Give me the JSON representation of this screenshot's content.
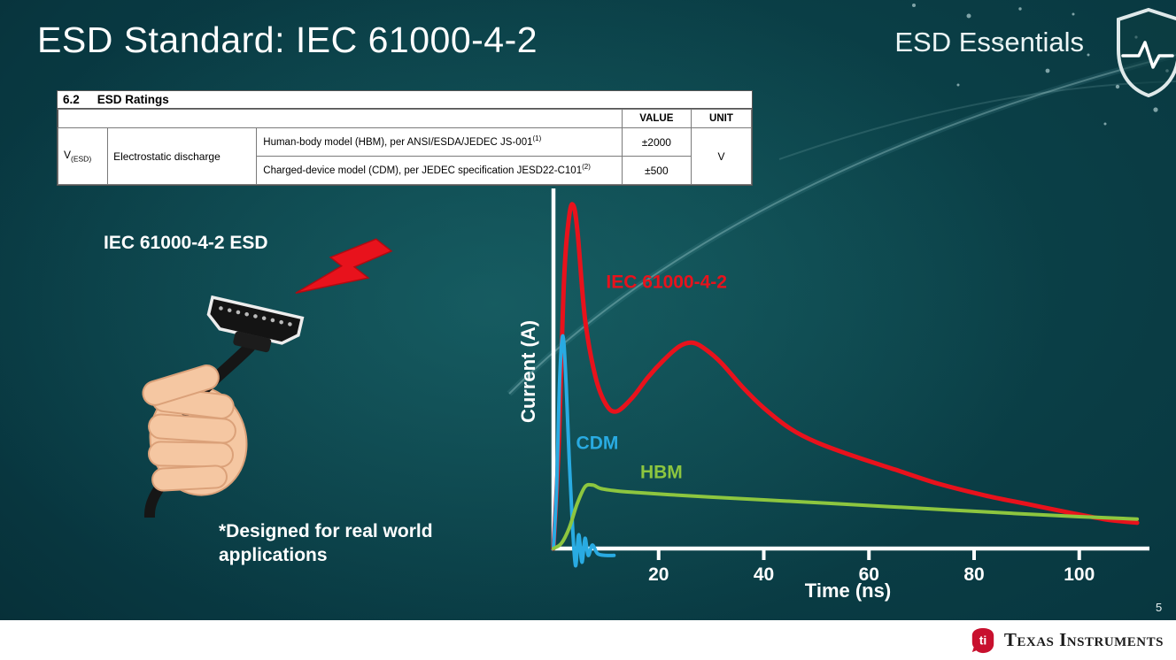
{
  "slide": {
    "title": "ESD Standard: IEC 61000-4-2",
    "series_label": "ESD Essentials",
    "page_number": "5"
  },
  "ratings_table": {
    "section_number": "6.2",
    "section_title": "ESD Ratings",
    "value_header": "VALUE",
    "unit_header": "UNIT",
    "symbol_base": "V",
    "symbol_sub": "(ESD)",
    "parameter": "Electrostatic discharge",
    "rows": [
      {
        "description": "Human-body model (HBM), per ANSI/ESDA/JEDEC JS-001",
        "ref": "(1)",
        "value": "±2000"
      },
      {
        "description": "Charged-device model (CDM), per JEDEC specification JESD22-C101",
        "ref": "(2)",
        "value": "±500"
      }
    ],
    "unit": "V"
  },
  "illustration": {
    "label": "IEC 61000-4-2 ESD",
    "footnote": "*Designed for real world applications"
  },
  "footer": {
    "brand": "Texas Instruments"
  },
  "chart_data": {
    "type": "line",
    "title": "",
    "xlabel": "Time (ns)",
    "ylabel": "Current (A)",
    "xlim": [
      0,
      112
    ],
    "ylim": [
      0,
      1.05
    ],
    "x_ticks": [
      20,
      40,
      60,
      80,
      100
    ],
    "grid": false,
    "legend": "inline-labels",
    "series": [
      {
        "name": "IEC 61000-4-2",
        "color": "#e8121c",
        "label_pos": {
          "x": 10,
          "y": 0.76
        },
        "points": [
          [
            0,
            0
          ],
          [
            1,
            0.3
          ],
          [
            2,
            0.78
          ],
          [
            3,
            0.97
          ],
          [
            3.8,
            1.0
          ],
          [
            4.6,
            0.92
          ],
          [
            6,
            0.67
          ],
          [
            8,
            0.5
          ],
          [
            10,
            0.42
          ],
          [
            12,
            0.4
          ],
          [
            15,
            0.44
          ],
          [
            18,
            0.5
          ],
          [
            21,
            0.55
          ],
          [
            24,
            0.59
          ],
          [
            26.5,
            0.6
          ],
          [
            29,
            0.58
          ],
          [
            32,
            0.54
          ],
          [
            36,
            0.47
          ],
          [
            40,
            0.41
          ],
          [
            45,
            0.35
          ],
          [
            50,
            0.31
          ],
          [
            57,
            0.27
          ],
          [
            65,
            0.23
          ],
          [
            73,
            0.19
          ],
          [
            82,
            0.155
          ],
          [
            90,
            0.13
          ],
          [
            98,
            0.105
          ],
          [
            105,
            0.085
          ],
          [
            111,
            0.075
          ]
        ]
      },
      {
        "name": "CDM",
        "color": "#29abe2",
        "label_pos": {
          "x": 4.3,
          "y": 0.29
        },
        "points": [
          [
            0,
            0
          ],
          [
            0.6,
            0.18
          ],
          [
            1.2,
            0.5
          ],
          [
            1.8,
            0.62
          ],
          [
            2.4,
            0.48
          ],
          [
            3,
            0.26
          ],
          [
            3.6,
            0.07
          ],
          [
            4.2,
            -0.05
          ],
          [
            4.8,
            0.04
          ],
          [
            5.4,
            -0.04
          ],
          [
            6,
            0.03
          ],
          [
            6.6,
            -0.02
          ],
          [
            7.4,
            0.01
          ],
          [
            8.4,
            -0.015
          ],
          [
            10,
            -0.02
          ],
          [
            11.5,
            -0.02
          ]
        ]
      },
      {
        "name": "HBM",
        "color": "#8dc63f",
        "label_pos": {
          "x": 16.5,
          "y": 0.205
        },
        "points": [
          [
            0,
            0
          ],
          [
            1.5,
            0.015
          ],
          [
            3,
            0.06
          ],
          [
            4.5,
            0.13
          ],
          [
            6,
            0.18
          ],
          [
            7.5,
            0.185
          ],
          [
            9,
            0.175
          ],
          [
            12,
            0.168
          ],
          [
            16,
            0.163
          ],
          [
            22,
            0.157
          ],
          [
            30,
            0.15
          ],
          [
            40,
            0.142
          ],
          [
            52,
            0.132
          ],
          [
            64,
            0.122
          ],
          [
            76,
            0.112
          ],
          [
            88,
            0.102
          ],
          [
            100,
            0.093
          ],
          [
            111,
            0.086
          ]
        ]
      }
    ]
  }
}
